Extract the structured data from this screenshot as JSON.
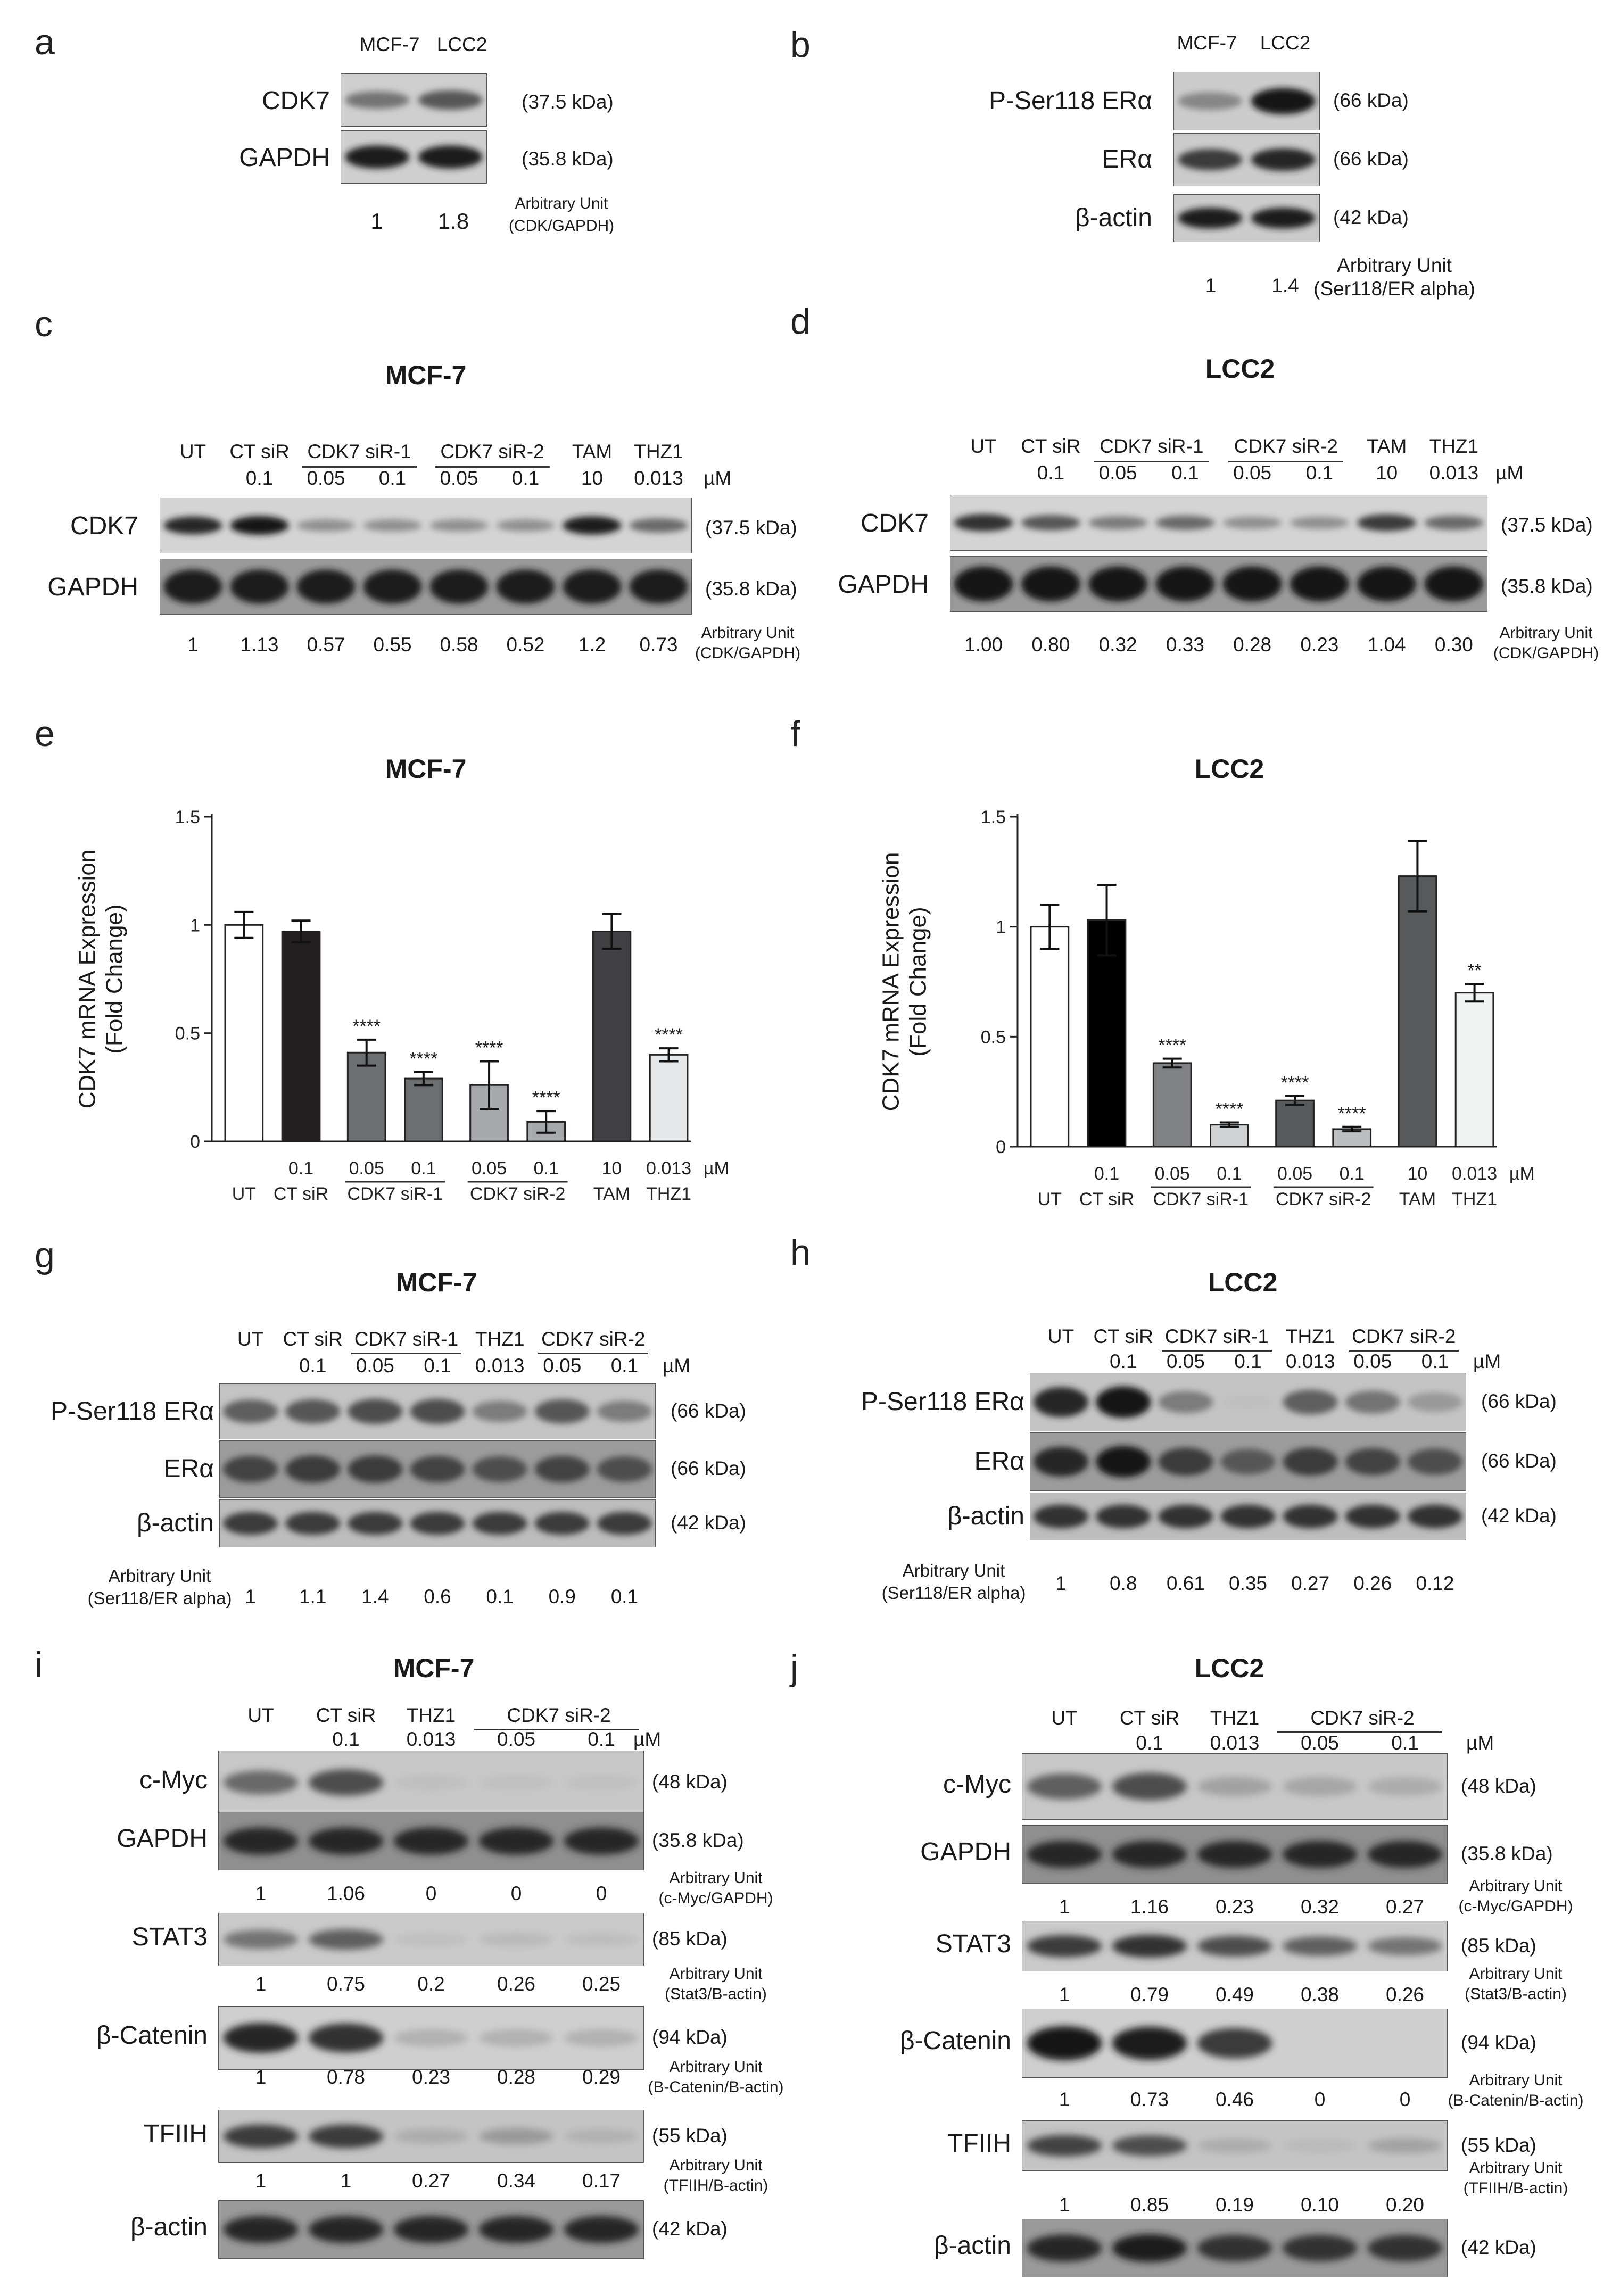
{
  "letters": [
    "a",
    "b",
    "c",
    "d",
    "e",
    "f",
    "g",
    "h",
    "i",
    "j"
  ],
  "pa": {
    "cols": [
      "MCF-7",
      "LCC2"
    ],
    "bands": [
      {
        "name": "CDK7",
        "kda": "(37.5 kDa)",
        "w": [
          0.45,
          0.6
        ]
      },
      {
        "name": "GAPDH",
        "kda": "(35.8 kDa)",
        "w": [
          0.9,
          0.9
        ]
      }
    ],
    "vals": [
      "1",
      "1.8"
    ],
    "au": [
      "Arbitrary Unit",
      "(CDK/GAPDH)"
    ]
  },
  "pb": {
    "cols": [
      "MCF-7",
      "LCC2"
    ],
    "bands": [
      {
        "name": "P-Ser118 ERα",
        "kda": "(66 kDa)",
        "w": [
          0.35,
          0.95
        ]
      },
      {
        "name": "ERα",
        "kda": "(66 kDa)",
        "w": [
          0.75,
          0.85
        ]
      },
      {
        "name": "β-actin",
        "kda": "(42 kDa)",
        "w": [
          0.9,
          0.9
        ]
      }
    ],
    "vals": [
      "1",
      "1.4"
    ],
    "au": [
      "Arbitrary Unit",
      "(Ser118/ER alpha)"
    ]
  },
  "pc": {
    "title": "MCF-7",
    "heads": [
      "UT",
      "CT siR",
      "CDK7 siR-1",
      "CDK7 siR-2",
      "TAM",
      "THZ1"
    ],
    "conc": [
      "0.1",
      "0.05",
      "0.1",
      "0.05",
      "0.1",
      "10",
      "0.013"
    ],
    "um": "µM",
    "bands": [
      {
        "name": "CDK7",
        "kda": "(37.5 kDa)",
        "w": [
          0.85,
          0.95,
          0.3,
          0.3,
          0.3,
          0.3,
          0.9,
          0.5
        ]
      },
      {
        "name": "GAPDH",
        "kda": "(35.8 kDa)",
        "w": [
          0.9,
          0.9,
          0.9,
          0.9,
          0.9,
          0.9,
          0.9,
          0.9
        ]
      }
    ],
    "vals": [
      "1",
      "1.13",
      "0.57",
      "0.55",
      "0.58",
      "0.52",
      "1.2",
      "0.73"
    ],
    "au": [
      "Arbitrary Unit",
      "(CDK/GAPDH)"
    ]
  },
  "pd": {
    "title": "LCC2",
    "heads": [
      "UT",
      "CT siR",
      "CDK7 siR-1",
      "CDK7 siR-2",
      "TAM",
      "THZ1"
    ],
    "conc": [
      "0.1",
      "0.05",
      "0.1",
      "0.05",
      "0.1",
      "10",
      "0.013"
    ],
    "um": "µM",
    "bands": [
      {
        "name": "CDK7",
        "kda": "(37.5 kDa)",
        "w": [
          0.8,
          0.6,
          0.4,
          0.5,
          0.3,
          0.3,
          0.75,
          0.5
        ]
      },
      {
        "name": "GAPDH",
        "kda": "(35.8 kDa)",
        "w": [
          0.95,
          0.95,
          0.95,
          0.95,
          0.95,
          0.95,
          0.95,
          0.95
        ]
      }
    ],
    "vals": [
      "1.00",
      "0.80",
      "0.32",
      "0.33",
      "0.28",
      "0.23",
      "1.04",
      "0.30"
    ],
    "au": [
      "Arbitrary Unit",
      "(CDK/GAPDH)"
    ]
  },
  "chart_data": [
    {
      "type": "bar",
      "title": "MCF-7",
      "ylabel": "CDK7 mRNA Expression (Fold Change)",
      "ylim": [
        0,
        1.5
      ],
      "yticks": [
        "0",
        "0.5",
        "1",
        "1.5"
      ],
      "categories": [
        "UT",
        "CT siR",
        "CDK7 siR-1 0.05",
        "CDK7 siR-1 0.1",
        "CDK7 siR-2 0.05",
        "CDK7 siR-2 0.1",
        "TAM",
        "THZ1"
      ],
      "values": [
        1.0,
        0.97,
        0.41,
        0.29,
        0.26,
        0.09,
        0.97,
        0.4
      ],
      "errors": [
        0.06,
        0.05,
        0.06,
        0.03,
        0.11,
        0.05,
        0.08,
        0.03
      ],
      "stars": [
        "",
        "",
        "****",
        "****",
        "****",
        "****",
        "",
        "****"
      ],
      "colors": [
        "#ffffff",
        "#231f20",
        "#6d6e70",
        "#6d6e70",
        "#a7a9ac",
        "#a7a9ac",
        "#414042",
        "#e6e7e8"
      ],
      "conc": [
        "0.1",
        "0.05",
        "0.1",
        "0.05",
        "0.1",
        "10",
        "0.013"
      ],
      "groups": [
        "UT",
        "CT siR",
        "CDK7 siR-1",
        "CDK7 siR-2",
        "TAM",
        "THZ1"
      ],
      "um": "µM"
    },
    {
      "type": "bar",
      "title": "LCC2",
      "ylabel": "CDK7 mRNA Expression (Fold Change)",
      "ylim": [
        0,
        1.5
      ],
      "yticks": [
        "0",
        "0.5",
        "1",
        "1.5"
      ],
      "categories": [
        "UT",
        "CT siR",
        "CDK7 siR-1 0.05",
        "CDK7 siR-1 0.1",
        "CDK7 siR-2 0.05",
        "CDK7 siR-2 0.1",
        "TAM",
        "THZ1"
      ],
      "values": [
        1.0,
        1.03,
        0.38,
        0.1,
        0.21,
        0.08,
        1.23,
        0.7
      ],
      "errors": [
        0.1,
        0.16,
        0.02,
        0.01,
        0.02,
        0.01,
        0.16,
        0.04
      ],
      "stars": [
        "",
        "",
        "****",
        "****",
        "****",
        "****",
        "",
        "**"
      ],
      "colors": [
        "#ffffff",
        "#000000",
        "#808285",
        "#d1d3d4",
        "#58595b",
        "#bcbec0",
        "#58595b",
        "#f1f2f2"
      ],
      "conc": [
        "0.1",
        "0.05",
        "0.1",
        "0.05",
        "0.1",
        "10",
        "0.013"
      ],
      "groups": [
        "UT",
        "CT siR",
        "CDK7 siR-1",
        "CDK7 siR-2",
        "TAM",
        "THZ1"
      ],
      "um": "µM"
    }
  ],
  "pg": {
    "title": "MCF-7",
    "heads": [
      "UT",
      "CT siR",
      "CDK7 siR-1",
      "THZ1",
      "CDK7 siR-2"
    ],
    "conc": [
      "0.1",
      "0.05",
      "0.1",
      "0.013",
      "0.05",
      "0.1"
    ],
    "um": "µM",
    "bands": [
      {
        "name": "P-Ser118 ERα",
        "kda": "(66 kDa)",
        "w": [
          0.55,
          0.6,
          0.65,
          0.65,
          0.4,
          0.6,
          0.4
        ]
      },
      {
        "name": "ERα",
        "kda": "(66 kDa)",
        "w": [
          0.7,
          0.75,
          0.75,
          0.7,
          0.65,
          0.7,
          0.65
        ]
      },
      {
        "name": "β-actin",
        "kda": "(42 kDa)",
        "w": [
          0.75,
          0.75,
          0.75,
          0.75,
          0.75,
          0.75,
          0.75
        ]
      }
    ],
    "au": [
      "Arbitrary Unit",
      "(Ser118/ER alpha)"
    ],
    "vals": [
      "1",
      "1.1",
      "1.4",
      "0.6",
      "0.1",
      "0.9",
      "0.1"
    ]
  },
  "ph": {
    "title": "LCC2",
    "heads": [
      "UT",
      "CT siR",
      "CDK7 siR-1",
      "THZ1",
      "CDK7 siR-2"
    ],
    "conc": [
      "0.1",
      "0.05",
      "0.1",
      "0.013",
      "0.05",
      "0.1"
    ],
    "um": "µM",
    "bands": [
      {
        "name": "P-Ser118 ERα",
        "kda": "(66 kDa)",
        "w": [
          0.85,
          0.95,
          0.4,
          0.05,
          0.55,
          0.45,
          0.25
        ]
      },
      {
        "name": "ERα",
        "kda": "(66 kDa)",
        "w": [
          0.85,
          0.95,
          0.75,
          0.6,
          0.75,
          0.7,
          0.65
        ]
      },
      {
        "name": "β-actin",
        "kda": "(42 kDa)",
        "w": [
          0.8,
          0.8,
          0.8,
          0.8,
          0.8,
          0.8,
          0.8
        ]
      }
    ],
    "au": [
      "Arbitrary Unit",
      "(Ser118/ER alpha)"
    ],
    "vals": [
      "1",
      "0.8",
      "0.61",
      "0.35",
      "0.27",
      "0.26",
      "0.12"
    ]
  },
  "pi": {
    "title": "MCF-7",
    "heads": [
      "UT",
      "CT siR",
      "THZ1",
      "CDK7 siR-2"
    ],
    "conc": [
      "0.1",
      "0.013",
      "0.05",
      "0.1"
    ],
    "um": "µM",
    "blots": [
      {
        "name": "c-Myc",
        "kda": "(48 kDa)",
        "w": [
          0.5,
          0.65,
          0.05,
          0.04,
          0.04
        ],
        "vals": [
          "1",
          "1.06",
          "0",
          "0",
          "0"
        ],
        "au": [
          "Arbitrary Unit",
          "(c-Myc/GAPDH)"
        ]
      },
      {
        "name": "GAPDH",
        "kda": "(35.8 kDa)",
        "w": [
          0.85,
          0.85,
          0.85,
          0.85,
          0.85
        ],
        "vals": [],
        "au": []
      },
      {
        "name": "STAT3",
        "kda": "(85 kDa)",
        "w": [
          0.45,
          0.55,
          0.05,
          0.08,
          0.06
        ],
        "vals": [
          "1",
          "0.75",
          "0.2",
          "0.26",
          "0.25"
        ],
        "au": [
          "Arbitrary Unit",
          "(Stat3/B-actin)"
        ]
      },
      {
        "name": "β-Catenin",
        "kda": "(94 kDa)",
        "w": [
          0.85,
          0.8,
          0.12,
          0.12,
          0.12
        ],
        "vals": [
          "1",
          "0.78",
          "0.23",
          "0.28",
          "0.29"
        ],
        "au": [
          "Arbitrary Unit",
          "(B-Catenin/B-actin)"
        ]
      },
      {
        "name": "TFIIH",
        "kda": "(55 kDa)",
        "w": [
          0.75,
          0.75,
          0.15,
          0.25,
          0.12
        ],
        "vals": [
          "1",
          "1",
          "0.27",
          "0.34",
          "0.17"
        ],
        "au": [
          "Arbitrary Unit",
          "(TFIIH/B-actin)"
        ]
      },
      {
        "name": "β-actin",
        "kda": "(42 kDa)",
        "w": [
          0.85,
          0.85,
          0.85,
          0.85,
          0.85
        ],
        "vals": [],
        "au": []
      }
    ]
  },
  "pj": {
    "title": "LCC2",
    "heads": [
      "UT",
      "CT siR",
      "THZ1",
      "CDK7 siR-2"
    ],
    "conc": [
      "0.1",
      "0.013",
      "0.05",
      "0.1"
    ],
    "um": "µM",
    "blots": [
      {
        "name": "c-Myc",
        "kda": "(48 kDa)",
        "w": [
          0.55,
          0.65,
          0.2,
          0.18,
          0.15
        ],
        "vals": [
          "1",
          "1.16",
          "0.23",
          "0.32",
          "0.27"
        ],
        "au": [
          "Arbitrary Unit",
          "(c-Myc/GAPDH)"
        ]
      },
      {
        "name": "GAPDH",
        "kda": "(35.8 kDa)",
        "w": [
          0.85,
          0.85,
          0.85,
          0.85,
          0.85
        ],
        "vals": [],
        "au": []
      },
      {
        "name": "STAT3",
        "kda": "(85 kDa)",
        "w": [
          0.75,
          0.8,
          0.65,
          0.55,
          0.45
        ],
        "vals": [
          "1",
          "0.79",
          "0.49",
          "0.38",
          "0.26"
        ],
        "au": [
          "Arbitrary Unit",
          "(Stat3/B-actin)"
        ]
      },
      {
        "name": "β-Catenin",
        "kda": "(94 kDa)",
        "w": [
          0.95,
          0.9,
          0.75,
          0.0,
          0.0
        ],
        "vals": [
          "1",
          "0.73",
          "0.46",
          "0",
          "0"
        ],
        "au": [
          "Arbitrary Unit",
          "(B-Catenin/B-actin)"
        ]
      },
      {
        "name": "TFIIH",
        "kda": "(55 kDa)",
        "w": [
          0.7,
          0.65,
          0.15,
          0.08,
          0.2
        ],
        "vals": [
          "1",
          "0.85",
          "0.19",
          "0.10",
          "0.20"
        ],
        "au": [
          "Arbitrary Unit",
          "(TFIIH/B-actin)"
        ]
      },
      {
        "name": "β-actin",
        "kda": "(42 kDa)",
        "w": [
          0.85,
          0.9,
          0.8,
          0.8,
          0.8
        ],
        "vals": [],
        "au": []
      }
    ]
  }
}
